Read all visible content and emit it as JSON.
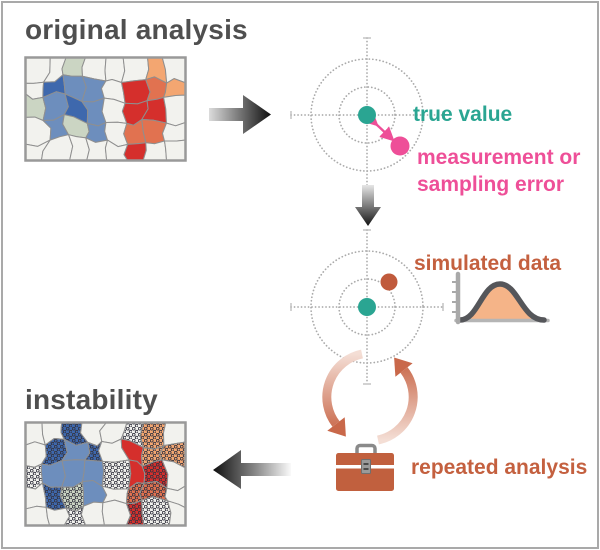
{
  "diagram": {
    "original": {
      "title": "original analysis"
    },
    "instability": {
      "title": "instability"
    },
    "target1": {
      "true_label": "true value",
      "error_label": "measurement or\nsampling error"
    },
    "target2": {
      "label": "simulated data"
    },
    "cycle": {
      "label": "repeated analysis"
    }
  },
  "colors": {
    "teal": "#2aa592",
    "pink": "#ee4f98",
    "rust_text": "#c4603f",
    "rust_dot": "#c05a3c",
    "rust_box": "#c1603e",
    "salmon_arrow": "#cd7458",
    "salmon_arrow_light": "#f4ded5",
    "title_gray": "#4f4f4f",
    "dot_gray": "#aaaaaa",
    "arrow_dark": "#101010",
    "arrow_light": "#dcdcdc",
    "curve_stroke": "#55565a",
    "curve_fill": "#f5b488",
    "map_frame": "#999999",
    "map_boundary": "#8f8f8f"
  },
  "maps": {
    "palette": {
      "w": "#f2f2ee",
      "b": "#6d8ebd",
      "B": "#3e68ad",
      "g": "#cbd5c3",
      "r": "#d52f2c",
      "s": "#e17250",
      "o": "#f3a671"
    },
    "original_cells": [
      [
        "w",
        "w",
        "g",
        "w",
        "w",
        "w",
        "o",
        "w"
      ],
      [
        "w",
        "B",
        "b",
        "b",
        "w",
        "r",
        "s",
        "o"
      ],
      [
        "g",
        "b",
        "B",
        "b",
        "w",
        "r",
        "r",
        "w"
      ],
      [
        "w",
        "b",
        "g",
        "b",
        "w",
        "s",
        "s",
        "w"
      ],
      [
        "w",
        "w",
        "w",
        "w",
        "w",
        "r",
        "w",
        "w"
      ]
    ],
    "instability_cells": [
      [
        "w",
        "w",
        "Bp",
        "w",
        "w",
        "wp",
        "op",
        "w"
      ],
      [
        "w",
        "Bp",
        "b",
        "Bp",
        "w",
        "r",
        "op",
        "op"
      ],
      [
        "wp",
        "b",
        "b",
        "b",
        "wp",
        "r",
        "rp",
        "w"
      ],
      [
        "w",
        "Bp",
        "gp",
        "b",
        "w",
        "sp",
        "sp",
        "w"
      ],
      [
        "w",
        "w",
        "wp",
        "w",
        "w",
        "rp",
        "wp",
        "w"
      ]
    ]
  }
}
